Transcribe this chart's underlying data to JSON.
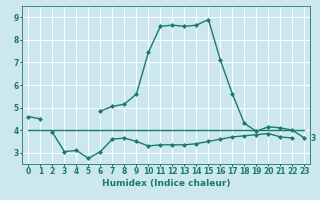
{
  "xlabel": "Humidex (Indice chaleur)",
  "bg_color": "#cce8ee",
  "grid_color": "#ffffff",
  "line_color": "#1a7a6e",
  "xlim": [
    -0.5,
    23.5
  ],
  "ylim": [
    2.5,
    9.5
  ],
  "xticks": [
    0,
    1,
    2,
    3,
    4,
    5,
    6,
    7,
    8,
    9,
    10,
    11,
    12,
    13,
    14,
    15,
    16,
    17,
    18,
    19,
    20,
    21,
    22,
    23
  ],
  "yticks": [
    3,
    4,
    5,
    6,
    7,
    8,
    9
  ],
  "line1_x": [
    0,
    1,
    6,
    7,
    8,
    9,
    10,
    11,
    12,
    13,
    14,
    15,
    16,
    17,
    18,
    19,
    20,
    21,
    22,
    23
  ],
  "line1_y": [
    4.6,
    4.5,
    4.85,
    5.05,
    5.15,
    5.6,
    7.45,
    8.6,
    8.65,
    8.6,
    8.65,
    8.9,
    7.1,
    5.6,
    4.3,
    3.95,
    4.15,
    4.1,
    4.0,
    3.65
  ],
  "line2_x": [
    2,
    3,
    4,
    5,
    6,
    7,
    8,
    9,
    10,
    11,
    12,
    13,
    14,
    15,
    16,
    17,
    18,
    19,
    20,
    21,
    22
  ],
  "line2_y": [
    3.9,
    3.05,
    3.1,
    2.75,
    3.05,
    3.6,
    3.65,
    3.5,
    3.3,
    3.35,
    3.35,
    3.35,
    3.4,
    3.5,
    3.6,
    3.7,
    3.75,
    3.8,
    3.85,
    3.7,
    3.65
  ],
  "line3_x": [
    0,
    23
  ],
  "line3_y": [
    4.0,
    4.0
  ],
  "marker_size": 2.5,
  "line_width": 1.0,
  "font_size": 6.5,
  "tick_font_size": 5.5
}
